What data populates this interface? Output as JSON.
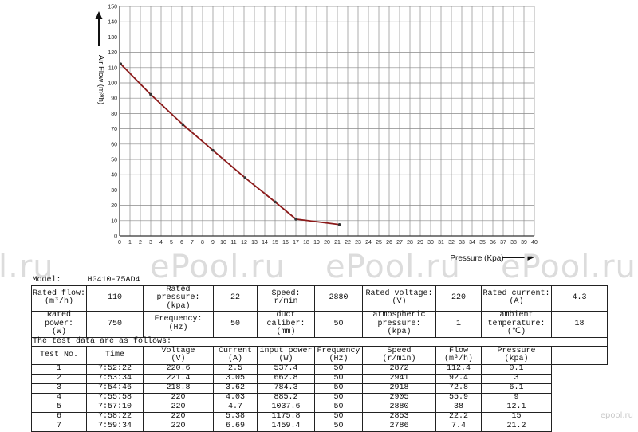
{
  "chart_data": {
    "type": "line",
    "xlabel": "Pressure  (Kpa)",
    "ylabel": "Air Flow  (m³/h)",
    "xlim": [
      0,
      40
    ],
    "ylim": [
      0,
      150
    ],
    "x_ticks": [
      0,
      1,
      2,
      3,
      4,
      5,
      6,
      7,
      8,
      9,
      10,
      11,
      12,
      13,
      14,
      15,
      16,
      17,
      18,
      19,
      20,
      21,
      22,
      23,
      24,
      25,
      26,
      27,
      28,
      29,
      30,
      31,
      32,
      33,
      34,
      35,
      36,
      37,
      38,
      39,
      40
    ],
    "y_ticks": [
      0,
      10,
      20,
      30,
      40,
      50,
      60,
      70,
      80,
      90,
      100,
      110,
      120,
      130,
      140,
      150
    ],
    "grid": true,
    "series": [
      {
        "x": [
          0.1,
          3,
          6.1,
          9,
          12.1,
          15,
          17,
          21.2
        ],
        "y": [
          112.4,
          92.4,
          72.8,
          55.9,
          38,
          22.2,
          11,
          7.4
        ]
      }
    ],
    "line_color": "#8b1a1a"
  },
  "watermarks": [
    "l.ru",
    "ePool.ru",
    "ePool.ru",
    "ePool.ru"
  ],
  "corner_watermark": "epool.ru",
  "specs": {
    "model_label": "Model:",
    "model_value": "HG410-75AD4",
    "rated_flow_label": "Rated flow:\n(m³/h)",
    "rated_flow_value": "110",
    "rated_pressure_label": "Rated pressure:\n(kpa)",
    "rated_pressure_value": "22",
    "speed_label": "Speed:\nr/min",
    "speed_value": "2880",
    "rated_voltage_label": "Rated voltage:\n(V)",
    "rated_voltage_value": "220",
    "rated_current_label": "Rated current:\n(A)",
    "rated_current_value": "4.3",
    "rated_power_label": "Rated power:\n(W)",
    "rated_power_value": "750",
    "frequency_label": "Frequency:\n(Hz)",
    "frequency_value": "50",
    "duct_caliber_label": "duct caliber:\n(mm)",
    "duct_caliber_value": "50",
    "atm_pressure_label": "atmospheric\npressure:\n(kpa)",
    "atm_pressure_value": "1",
    "ambient_temp_label": "ambient\ntemperature:\n(℃)",
    "ambient_temp_value": "18"
  },
  "test_table": {
    "caption": "The test data are as follows:",
    "headers": [
      "Test No.",
      "Time",
      "Voltage\n(V)",
      "Current\n(A)",
      "input power\n(W)",
      "Frequency\n(Hz)",
      "Speed\n(r/min)",
      "Flow\n(m³/h)",
      "Pressure\n(kpa)"
    ],
    "rows": [
      [
        "1",
        "7:52:22",
        "220.6",
        "2.5",
        "537.4",
        "50",
        "2872",
        "112.4",
        "0.1"
      ],
      [
        "2",
        "7:53:34",
        "221.4",
        "3.05",
        "662.8",
        "50",
        "2941",
        "92.4",
        "3"
      ],
      [
        "3",
        "7:54:46",
        "218.8",
        "3.62",
        "784.3",
        "50",
        "2918",
        "72.8",
        "6.1"
      ],
      [
        "4",
        "7:55:58",
        "220",
        "4.03",
        "885.2",
        "50",
        "2905",
        "55.9",
        "9"
      ],
      [
        "5",
        "7:57:10",
        "220",
        "4.7",
        "1037.6",
        "50",
        "2880",
        "38",
        "12.1"
      ],
      [
        "6",
        "7:58:22",
        "220",
        "5.38",
        "1175.8",
        "50",
        "2853",
        "22.2",
        "15"
      ],
      [
        "7",
        "7:59:34",
        "220",
        "6.69",
        "1459.4",
        "50",
        "2786",
        "7.4",
        "21.2"
      ]
    ]
  }
}
